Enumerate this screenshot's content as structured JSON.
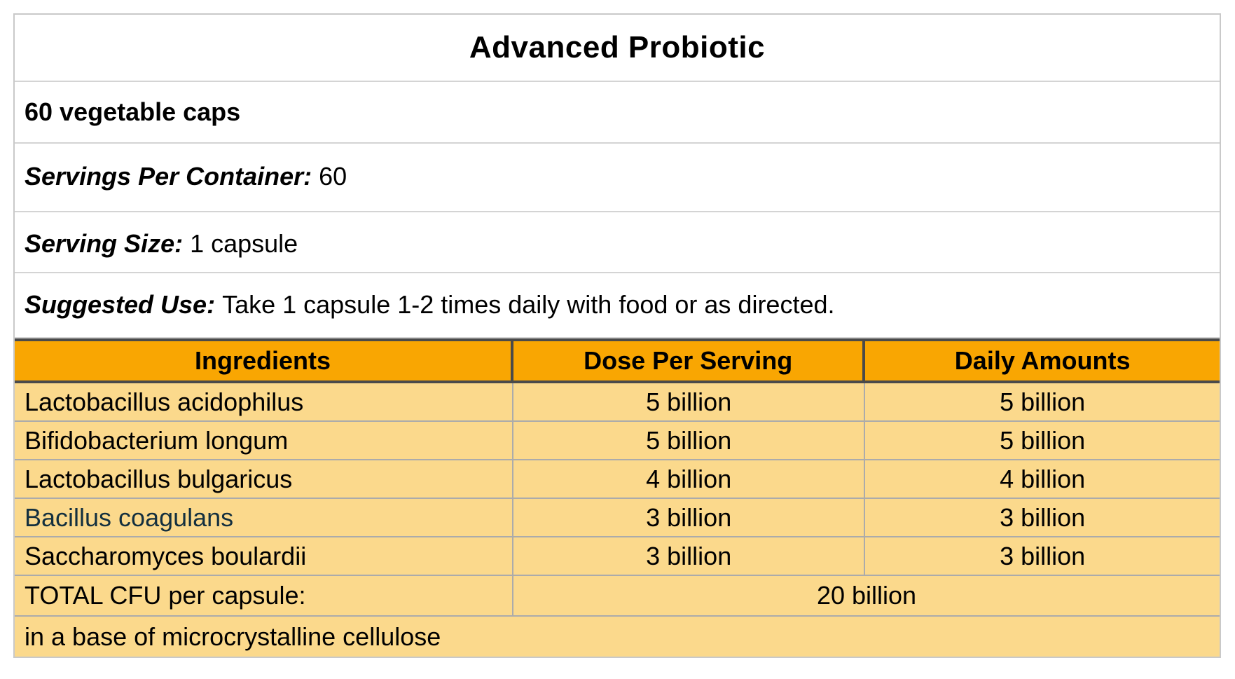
{
  "title": "Advanced Probiotic",
  "product": {
    "quantity": "60 vegetable caps",
    "servings_per_container_label": "Servings Per Container:",
    "servings_per_container_value": "60",
    "serving_size_label": "Serving Size:",
    "serving_size_value": "1 capsule",
    "suggested_use_label": "Suggested Use:",
    "suggested_use_value": "Take 1 capsule 1-2 times daily with food or as directed."
  },
  "table": {
    "headers": {
      "ingredients": "Ingredients",
      "dose": "Dose Per Serving",
      "daily": "Daily Amounts"
    },
    "rows": [
      {
        "name": "Lactobacillus acidophilus",
        "dose": "5 billion",
        "daily": "5 billion"
      },
      {
        "name": "Bifidobacterium longum",
        "dose": "5 billion",
        "daily": "5 billion"
      },
      {
        "name": "Lactobacillus bulgaricus",
        "dose": "4 billion",
        "daily": "4 billion"
      },
      {
        "name": "Bacillus coagulans",
        "dose": "3 billion",
        "daily": "3 billion"
      },
      {
        "name": "Saccharomyces boulardii",
        "dose": "3 billion",
        "daily": "3 billion"
      }
    ],
    "total_label": "TOTAL CFU per capsule:",
    "total_value": "20 billion",
    "base_note": "in a base of microcrystalline cellulose"
  },
  "colors": {
    "header_bg": "#f9a602",
    "body_bg": "#fbd98c",
    "header_border": "#4a4a4a",
    "grid_line": "#ababab",
    "outer_border": "#c9c9c9",
    "link_text": "#14303f"
  }
}
